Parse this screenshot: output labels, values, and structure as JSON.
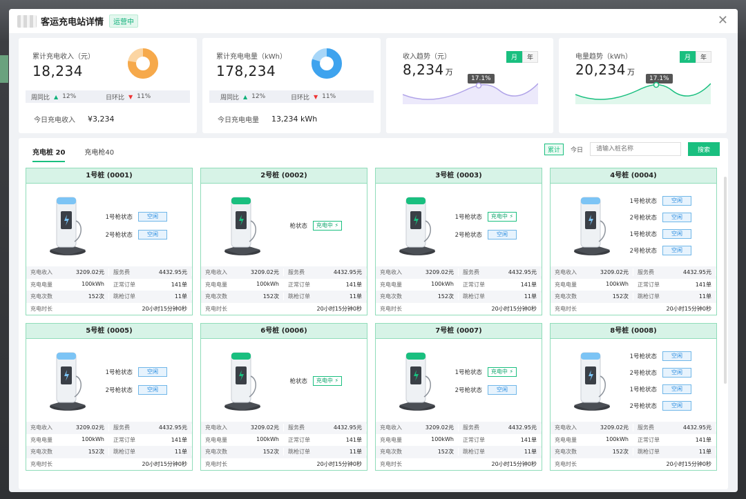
{
  "header": {
    "title": "客运充电站详情",
    "status": "运营中"
  },
  "stats": {
    "revenue": {
      "label": "累计充电收入（元）",
      "value": "18,234",
      "wow_label": "周同比",
      "wow": "12%",
      "dod_label": "日环比",
      "dod": "11%",
      "today_label": "今日充电收入",
      "today_value": "¥3,234"
    },
    "energy": {
      "label": "累计充电电量（kWh）",
      "value": "178,234",
      "wow_label": "周同比",
      "wow": "12%",
      "dod_label": "日环比",
      "dod": "11%",
      "today_label": "今日充电电量",
      "today_value": "13,234 kWh"
    },
    "income_trend": {
      "label": "收入趋势（元）",
      "value": "8,234",
      "unit": "万",
      "toggle_month": "月",
      "toggle_year": "年",
      "tip": "17.1%"
    },
    "energy_trend": {
      "label": "电量趋势（kWh）",
      "value": "20,234",
      "unit": "万",
      "toggle_month": "月",
      "toggle_year": "年",
      "tip": "17.1%"
    }
  },
  "tabs": [
    {
      "label": "充电桩 20"
    },
    {
      "label": "充电枪40"
    }
  ],
  "toolbar": {
    "tag_cumulative": "累计",
    "tag_today": "今日",
    "search_placeholder": "请输入桩名称",
    "search_button": "搜索"
  },
  "labels": {
    "income": "充电收入",
    "service_fee": "服务费",
    "energy": "充电电量",
    "normal_orders": "正常订单",
    "count": "充电次数",
    "abnormal_orders": "跳枪订单",
    "duration": "充电时长"
  },
  "piles": [
    {
      "title": "1号桩 (0001)",
      "guns": [
        {
          "label": "1号枪状态",
          "status": "空闲"
        },
        {
          "label": "2号枪状态",
          "status": "空闲"
        }
      ],
      "income": "3209.02元",
      "service_fee": "4432.95元",
      "energy": "100kWh",
      "normal_orders": "141单",
      "count": "152次",
      "abnormal_orders": "11单",
      "duration": "20小时15分钟0秒"
    },
    {
      "title": "2号桩 (0002)",
      "guns": [
        {
          "label": "枪状态",
          "status": "充电中"
        }
      ],
      "income": "3209.02元",
      "service_fee": "4432.95元",
      "energy": "100kWh",
      "normal_orders": "141单",
      "count": "152次",
      "abnormal_orders": "11单",
      "duration": "20小时15分钟0秒"
    },
    {
      "title": "3号桩 (0003)",
      "guns": [
        {
          "label": "1号枪状态",
          "status": "充电中"
        },
        {
          "label": "2号枪状态",
          "status": "空闲"
        }
      ],
      "income": "3209.02元",
      "service_fee": "4432.95元",
      "energy": "100kWh",
      "normal_orders": "141单",
      "count": "152次",
      "abnormal_orders": "11单",
      "duration": "20小时15分钟0秒"
    },
    {
      "title": "4号桩 (0004)",
      "guns": [
        {
          "label": "1号枪状态",
          "status": "空闲"
        },
        {
          "label": "2号枪状态",
          "status": "空闲"
        },
        {
          "label": "1号枪状态",
          "status": "空闲"
        },
        {
          "label": "2号枪状态",
          "status": "空闲"
        }
      ],
      "income": "3209.02元",
      "service_fee": "4432.95元",
      "energy": "100kWh",
      "normal_orders": "141单",
      "count": "152次",
      "abnormal_orders": "11单",
      "duration": "20小时15分钟0秒"
    },
    {
      "title": "5号桩 (0005)",
      "guns": [
        {
          "label": "1号枪状态",
          "status": "空闲"
        },
        {
          "label": "2号枪状态",
          "status": "空闲"
        }
      ],
      "income": "3209.02元",
      "service_fee": "4432.95元",
      "energy": "100kWh",
      "normal_orders": "141单",
      "count": "152次",
      "abnormal_orders": "11单",
      "duration": "20小时15分钟0秒"
    },
    {
      "title": "6号桩 (0006)",
      "guns": [
        {
          "label": "枪状态",
          "status": "充电中"
        }
      ],
      "income": "3209.02元",
      "service_fee": "4432.95元",
      "energy": "100kWh",
      "normal_orders": "141单",
      "count": "152次",
      "abnormal_orders": "11单",
      "duration": "20小时15分钟0秒"
    },
    {
      "title": "7号桩 (0007)",
      "guns": [
        {
          "label": "1号枪状态",
          "status": "充电中"
        },
        {
          "label": "2号枪状态",
          "status": "空闲"
        }
      ],
      "income": "3209.02元",
      "service_fee": "4432.95元",
      "energy": "100kWh",
      "normal_orders": "141单",
      "count": "152次",
      "abnormal_orders": "11单",
      "duration": "20小时15分钟0秒"
    },
    {
      "title": "8号桩 (0008)",
      "guns": [
        {
          "label": "1号枪状态",
          "status": "空闲"
        },
        {
          "label": "2号枪状态",
          "status": "空闲"
        },
        {
          "label": "1号枪状态",
          "status": "空闲"
        },
        {
          "label": "2号枪状态",
          "status": "空闲"
        }
      ],
      "income": "3209.02元",
      "service_fee": "4432.95元",
      "energy": "100kWh",
      "normal_orders": "141单",
      "count": "152次",
      "abnormal_orders": "11单",
      "duration": "20小时15分钟0秒"
    }
  ],
  "colors": {
    "accent": "#19bf7f",
    "idle": "#2b8de0",
    "donut_revenue": "#f6a94b",
    "donut_energy": "#3ea3ee",
    "trend_income": "#b0a3e8",
    "trend_energy": "#19bf7f"
  }
}
